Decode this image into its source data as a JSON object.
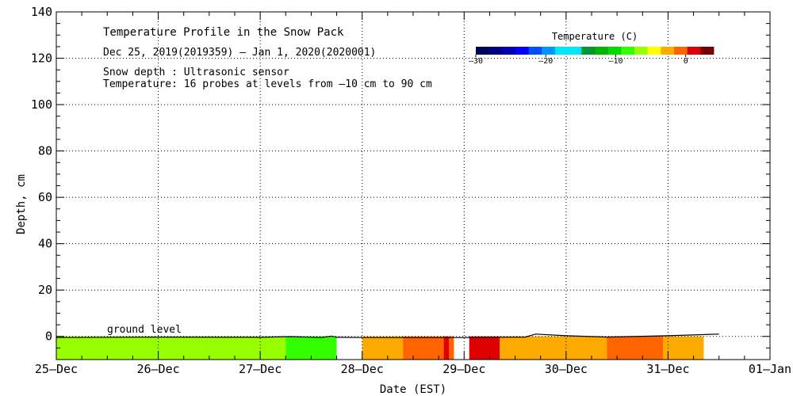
{
  "chart_data": {
    "type": "heatmap",
    "title": "Temperature Profile in the Snow Pack",
    "date_range": "Dec 25, 2019(2019359) – Jan  1, 2020(2020001)",
    "notes": [
      "Snow depth : Ultrasonic sensor",
      "Temperature: 16 probes at levels from –10 cm to 90 cm"
    ],
    "xlabel": "Date (EST)",
    "ylabel": "Depth, cm",
    "x_ticks": [
      "25–Dec",
      "26–Dec",
      "27–Dec",
      "28–Dec",
      "29–Dec",
      "30–Dec",
      "31–Dec",
      "01–Jan"
    ],
    "xlim": [
      0,
      7
    ],
    "ylim": [
      -10,
      140
    ],
    "y_ticks": [
      0,
      20,
      40,
      60,
      80,
      100,
      120,
      140
    ],
    "grid": true,
    "annotation": "ground level",
    "colorbar": {
      "title": "Temperature (C)",
      "range": [
        -30,
        4
      ],
      "ticks": [
        {
          "value": -30,
          "label": "–30"
        },
        {
          "value": -20,
          "label": "–20"
        },
        {
          "value": -10,
          "label": "–10"
        },
        {
          "value": 0,
          "label": "0"
        }
      ],
      "colors": [
        "#00005a",
        "#000080",
        "#0000b4",
        "#0000ff",
        "#0050ff",
        "#0096ff",
        "#00e6ff",
        "#00e6ff",
        "#009632",
        "#00b400",
        "#00dc00",
        "#32ff00",
        "#96ff00",
        "#ffff00",
        "#ffaa00",
        "#ff6400",
        "#dc0000",
        "#780000"
      ]
    },
    "temperature_bands": [
      {
        "start": 0.0,
        "end": 1.5,
        "temp": -6
      },
      {
        "start": 1.5,
        "end": 2.25,
        "temp": -7
      },
      {
        "start": 2.25,
        "end": 2.75,
        "temp": -8
      },
      {
        "start": 3.0,
        "end": 3.4,
        "temp": -2
      },
      {
        "start": 3.4,
        "end": 3.8,
        "temp": -1
      },
      {
        "start": 3.8,
        "end": 3.85,
        "temp": 1
      },
      {
        "start": 3.85,
        "end": 3.9,
        "temp": -1
      },
      {
        "start": 4.05,
        "end": 4.35,
        "temp": 1
      },
      {
        "start": 4.35,
        "end": 5.4,
        "temp": -2
      },
      {
        "start": 5.4,
        "end": 5.95,
        "temp": -1
      },
      {
        "start": 5.95,
        "end": 6.35,
        "temp": -2
      }
    ],
    "snow_depth": [
      {
        "x": 0.0,
        "y": -0.5
      },
      {
        "x": 1.0,
        "y": -0.3
      },
      {
        "x": 2.0,
        "y": -0.4
      },
      {
        "x": 2.3,
        "y": -0.1
      },
      {
        "x": 2.6,
        "y": -0.5
      },
      {
        "x": 2.7,
        "y": 0.1
      },
      {
        "x": 2.75,
        "y": -0.4
      },
      {
        "x": 3.0,
        "y": -0.5
      },
      {
        "x": 4.0,
        "y": -0.5
      },
      {
        "x": 4.6,
        "y": -0.3
      },
      {
        "x": 4.7,
        "y": 1.0
      },
      {
        "x": 5.0,
        "y": 0.3
      },
      {
        "x": 5.4,
        "y": -0.3
      },
      {
        "x": 6.0,
        "y": 0.3
      },
      {
        "x": 6.5,
        "y": 1.0
      }
    ]
  }
}
